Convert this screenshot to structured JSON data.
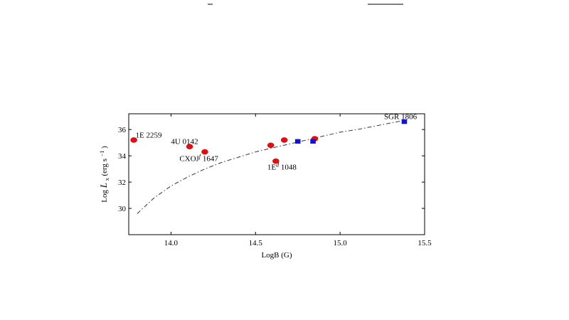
{
  "chart_data": {
    "type": "scatter",
    "title": "",
    "xlabel": "LogB (G)",
    "ylabel_main": "Log",
    "ylabel_sym": "L",
    "ylabel_sub": "x",
    "ylabel_unit_pre": " (erg s",
    "ylabel_unit_exp": "−1",
    "ylabel_unit_post": ")",
    "xlim": [
      13.75,
      15.5
    ],
    "ylim": [
      28.0,
      37.2
    ],
    "xticks": [
      {
        "value": 14.0,
        "label": "14.0"
      },
      {
        "value": 14.5,
        "label": "14.5"
      },
      {
        "value": 15.0,
        "label": "15.0"
      },
      {
        "value": 15.5,
        "label": "15.5"
      }
    ],
    "yticks": [
      {
        "value": 30,
        "label": "30"
      },
      {
        "value": 32,
        "label": "32"
      },
      {
        "value": 34,
        "label": "34"
      },
      {
        "value": 36,
        "label": "36"
      }
    ],
    "grid": false,
    "series": [
      {
        "marker": "circle",
        "color": "#dd1111",
        "points": [
          {
            "x": 13.78,
            "y": 35.2
          },
          {
            "x": 14.11,
            "y": 34.7
          },
          {
            "x": 14.2,
            "y": 34.3
          },
          {
            "x": 14.59,
            "y": 34.8
          },
          {
            "x": 14.62,
            "y": 33.6
          },
          {
            "x": 14.67,
            "y": 35.2
          },
          {
            "x": 14.85,
            "y": 35.3
          }
        ]
      },
      {
        "marker": "square",
        "color": "#1111dd",
        "points": [
          {
            "x": 14.75,
            "y": 35.1
          },
          {
            "x": 14.84,
            "y": 35.1
          },
          {
            "x": 15.38,
            "y": 36.6
          }
        ]
      },
      {
        "marker": "dashdot-line",
        "color": "#333333",
        "points": [
          {
            "x": 13.8,
            "y": 29.6
          },
          {
            "x": 13.85,
            "y": 30.2
          },
          {
            "x": 13.9,
            "y": 30.8
          },
          {
            "x": 14.0,
            "y": 31.7
          },
          {
            "x": 14.1,
            "y": 32.4
          },
          {
            "x": 14.2,
            "y": 33.0
          },
          {
            "x": 14.3,
            "y": 33.5
          },
          {
            "x": 14.4,
            "y": 33.9
          },
          {
            "x": 14.5,
            "y": 34.3
          },
          {
            "x": 14.6,
            "y": 34.6
          },
          {
            "x": 14.7,
            "y": 34.9
          },
          {
            "x": 14.8,
            "y": 35.2
          },
          {
            "x": 14.9,
            "y": 35.5
          },
          {
            "x": 15.0,
            "y": 35.8
          },
          {
            "x": 15.1,
            "y": 36.0
          },
          {
            "x": 15.2,
            "y": 36.25
          },
          {
            "x": 15.3,
            "y": 36.5
          },
          {
            "x": 15.38,
            "y": 36.7
          }
        ]
      }
    ],
    "annotations": [
      {
        "text": "1E 2259",
        "x": 13.79,
        "y": 35.4
      },
      {
        "text": "4U 0142",
        "x": 14.0,
        "y": 34.9
      },
      {
        "text": "CXOJ",
        "sup": "f",
        "after": " 1647",
        "x": 14.05,
        "y": 33.6
      },
      {
        "text": "1E",
        "sup": "d",
        "after": " 1048",
        "x": 14.57,
        "y": 32.95
      },
      {
        "text": "SGR 1806",
        "x": 15.26,
        "y": 36.8
      }
    ]
  }
}
